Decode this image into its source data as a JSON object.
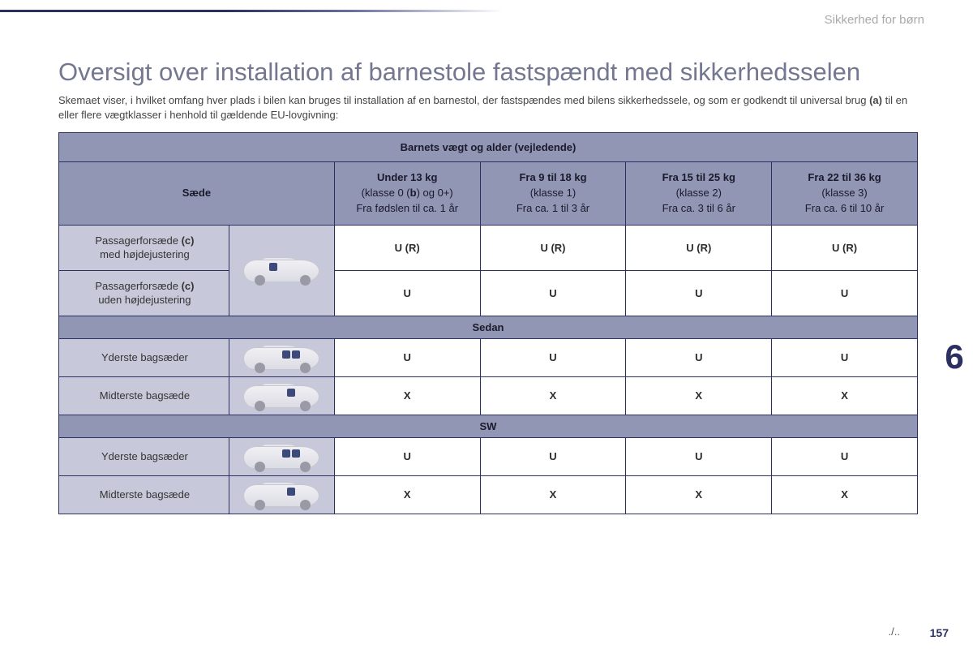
{
  "section_label": "Sikkerhed for børn",
  "title": "Oversigt over installation af barnestole fastspændt med sikkerhedsselen",
  "intro_before_bold": "Skemaet viser, i hvilket omfang hver plads i bilen kan bruges til installation af en barnestol, der fastspændes med bilens sikkerhedssele, og som er godkendt til universal brug ",
  "intro_bold": "(a)",
  "intro_after_bold": " til en eller flere vægtklasser i henhold til gældende EU-lovgivning:",
  "table": {
    "header_top": "Barnets vægt og alder (vejledende)",
    "seat_header": "Sæde",
    "weight_cols": [
      {
        "bold": "Under 13 kg",
        "line2a": "(klasse 0 (",
        "line2b": "b",
        "line2c": ") og 0+)",
        "line3": "Fra fødslen til ca. 1 år"
      },
      {
        "bold": "Fra 9 til 18 kg",
        "line2": "(klasse 1)",
        "line3": "Fra ca. 1 til 3 år"
      },
      {
        "bold": "Fra 15 til 25 kg",
        "line2": "(klasse 2)",
        "line3": "Fra ca. 3 til 6 år"
      },
      {
        "bold": "Fra 22 til 36 kg",
        "line2": "(klasse 3)",
        "line3": "Fra ca. 6 til 10 år"
      }
    ],
    "rows_front": [
      {
        "label_a": "Passagerforsæde ",
        "label_b": "(c)",
        "label_c": "med højdejustering",
        "values": [
          "U (R)",
          "U (R)",
          "U (R)",
          "U (R)"
        ]
      },
      {
        "label_a": "Passagerforsæde ",
        "label_b": "(c)",
        "label_c": "uden højdejustering",
        "values": [
          "U",
          "U",
          "U",
          "U"
        ]
      }
    ],
    "section_sedan": "Sedan",
    "rows_sedan": [
      {
        "label": "Yderste bagsæder",
        "values": [
          "U",
          "U",
          "U",
          "U"
        ]
      },
      {
        "label": "Midterste bagsæde",
        "values": [
          "X",
          "X",
          "X",
          "X"
        ]
      }
    ],
    "section_sw": "SW",
    "rows_sw": [
      {
        "label": "Yderste bagsæder",
        "values": [
          "U",
          "U",
          "U",
          "U"
        ]
      },
      {
        "label": "Midterste bagsæde",
        "values": [
          "X",
          "X",
          "X",
          "X"
        ]
      }
    ]
  },
  "continuation": "./..",
  "page_number": "157",
  "chapter_number": "6"
}
